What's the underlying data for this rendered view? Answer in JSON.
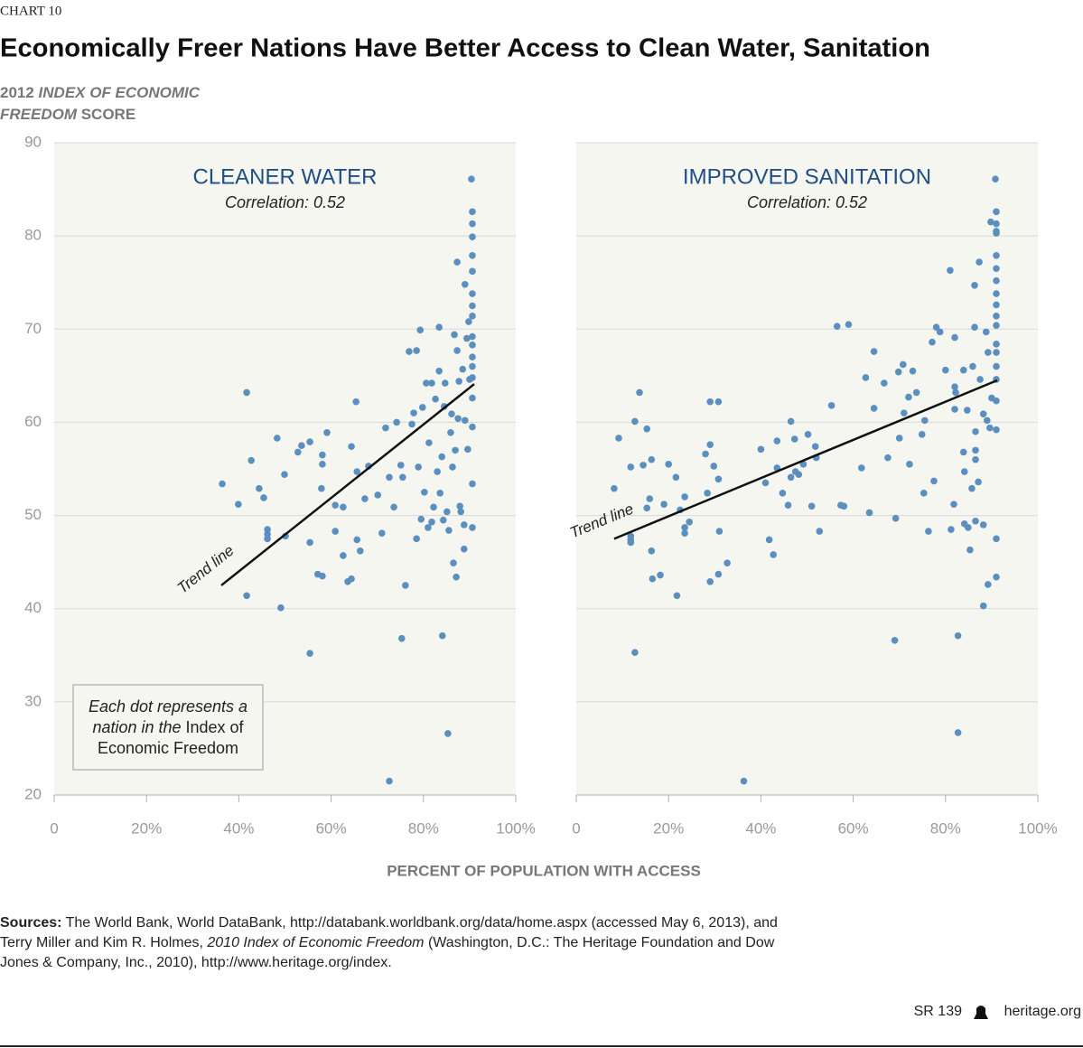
{
  "header": "CHART 10",
  "title": "Economically Freer Nations Have Better Access to Clean Water, Sanitation",
  "y_label": [
    [
      {
        "text": "2012 "
      },
      {
        "text": "INDEX OF ECONOMIC",
        "italic": true
      }
    ],
    [
      {
        "text": "FREEDOM",
        "italic": true
      },
      {
        "text": " SCORE"
      }
    ]
  ],
  "x_label": "PERCENT OF POPULATION WITH ACCESS",
  "sources": [
    [
      {
        "text": "Sources:",
        "bold": true
      },
      {
        "text": " The World Bank, World DataBank, http://databank.worldbank.org/data/home.aspx (accessed May 6, 2013), and"
      }
    ],
    [
      {
        "text": "Terry Miller and Kim R. Holmes, "
      },
      {
        "text": "2010 Index of Economic Freedom",
        "italic": true
      },
      {
        "text": " (Washington, D.C.: The Heritage Foundation and Dow"
      }
    ],
    [
      {
        "text": "Jones & Company, Inc., 2010), http://www.heritage.org/index."
      }
    ]
  ],
  "footer": {
    "report": "SR 139",
    "site": "heritage.org"
  },
  "chart_data": [
    {
      "type": "scatter",
      "title": "CLEANER WATER",
      "subtitle": "Correlation: 0.52",
      "color": "#5b8fbf",
      "title_color": "#1f4e85",
      "xlim": [
        0,
        100
      ],
      "ylim": [
        20,
        90
      ],
      "show_ytick_labels": true,
      "grid": true,
      "xticks": [
        0,
        {
          "value": 20,
          "label": "20%"
        },
        {
          "value": 40,
          "label": "40%"
        },
        {
          "value": 60,
          "label": "60%"
        },
        {
          "value": 80,
          "label": "80%"
        },
        {
          "value": 100,
          "label": "100%"
        }
      ],
      "yticks": [
        20,
        30,
        40,
        50,
        60,
        70,
        80,
        90
      ],
      "x": [
        36.4,
        39.9,
        41.7,
        41.7,
        42.7,
        44.4,
        45.4,
        46.2,
        46.2,
        46.2,
        48.3,
        49.1,
        49.9,
        50.1,
        52.8,
        53.6,
        55.4,
        55.4,
        55.4,
        57.1,
        58.1,
        57.9,
        58.1,
        58.1,
        59.1,
        60.9,
        60.9,
        62.6,
        62.6,
        63.6,
        64.4,
        64.4,
        65.4,
        65.6,
        65.6,
        66.3,
        67.3,
        68.1,
        70.1,
        71.0,
        71.8,
        72.6,
        72.6,
        73.6,
        74.2,
        75.1,
        75.3,
        75.5,
        76.1,
        76.9,
        77.5,
        77.9,
        78.5,
        78.5,
        78.9,
        79.3,
        79.5,
        79.8,
        80.2,
        80.6,
        81.0,
        81.2,
        81.8,
        81.8,
        82.2,
        82.6,
        83.0,
        83.4,
        83.4,
        83.6,
        84.0,
        84.1,
        84.3,
        84.5,
        84.7,
        85.1,
        85.3,
        85.5,
        85.9,
        86.1,
        86.3,
        86.5,
        86.7,
        86.9,
        87.1,
        87.3,
        87.3,
        87.5,
        87.7,
        87.9,
        88.1,
        88.5,
        88.8,
        88.8,
        89.0,
        89.0,
        89.4,
        89.6,
        89.8,
        90.0,
        90.4,
        90.6,
        90.6,
        90.6,
        90.6,
        90.6,
        90.6,
        90.6,
        90.6,
        90.6,
        90.6,
        90.6,
        90.6,
        90.6,
        90.6,
        90.6,
        90.6,
        90.6
      ],
      "values": [
        53.4,
        51.2,
        41.4,
        63.2,
        55.9,
        52.9,
        51.9,
        48.5,
        47.5,
        48.0,
        58.3,
        40.1,
        54.4,
        47.8,
        56.8,
        57.5,
        57.9,
        47.1,
        35.2,
        43.7,
        43.5,
        52.9,
        56.5,
        55.5,
        58.9,
        51.1,
        48.3,
        50.9,
        45.7,
        42.9,
        43.2,
        57.4,
        62.2,
        54.7,
        47.4,
        46.2,
        51.8,
        55.3,
        52.2,
        48.1,
        59.4,
        21.5,
        54.1,
        50.9,
        60.0,
        55.4,
        36.8,
        54.1,
        42.5,
        67.6,
        59.8,
        61.0,
        67.7,
        47.5,
        55.2,
        69.9,
        49.6,
        61.6,
        52.5,
        64.2,
        48.7,
        57.8,
        49.3,
        64.2,
        50.9,
        62.5,
        54.7,
        70.2,
        65.5,
        52.4,
        56.3,
        37.1,
        49.5,
        61.7,
        64.2,
        50.4,
        26.6,
        48.4,
        58.9,
        60.9,
        55.2,
        44.9,
        69.4,
        57.0,
        43.4,
        67.7,
        77.2,
        60.4,
        64.4,
        51.0,
        50.4,
        65.7,
        46.4,
        49.0,
        74.8,
        60.2,
        69.0,
        57.1,
        70.8,
        64.6,
        86.1,
        82.6,
        77.9,
        76.2,
        73.8,
        71.4,
        69.2,
        67.0,
        66.0,
        62.6,
        59.5,
        53.4,
        48.7,
        81.3,
        79.9,
        72.5,
        68.3,
        64.8
      ],
      "trend": {
        "label": "Trend line",
        "x": [
          36.2,
          91
        ],
        "y": [
          42.5,
          64.1
        ]
      },
      "note": [
        [
          {
            "text": "Each dot represents a",
            "italic": true
          }
        ],
        [
          {
            "text": "nation in the",
            "italic": true
          },
          {
            "text": " Index of"
          }
        ],
        [
          {
            "text": "Economic Freedom"
          }
        ]
      ]
    },
    {
      "type": "scatter",
      "title": "IMPROVED SANITATION",
      "subtitle": "Correlation: 0.52",
      "color": "#5b8fbf",
      "title_color": "#1f4e85",
      "xlim": [
        0,
        100
      ],
      "ylim": [
        20,
        90
      ],
      "show_ytick_labels": false,
      "grid": true,
      "xticks": [
        0,
        {
          "value": 20,
          "label": "20%"
        },
        {
          "value": 40,
          "label": "40%"
        },
        {
          "value": 60,
          "label": "60%"
        },
        {
          "value": 80,
          "label": "80%"
        },
        {
          "value": 100,
          "label": "100%"
        }
      ],
      "yticks": [
        20,
        30,
        40,
        50,
        60,
        70,
        80,
        90
      ],
      "x": [
        8.2,
        9.2,
        11.8,
        11.8,
        11.8,
        11.8,
        12.7,
        12.7,
        13.7,
        14.5,
        15.3,
        15.3,
        15.9,
        16.3,
        16.3,
        16.5,
        18.2,
        19.0,
        20.0,
        21.6,
        21.8,
        22.5,
        23.5,
        23.5,
        23.5,
        24.5,
        28.0,
        28.4,
        29.0,
        29.0,
        29.0,
        29.8,
        30.8,
        30.8,
        31.0,
        30.8,
        32.7,
        36.3,
        40.0,
        41.0,
        41.8,
        42.7,
        43.5,
        43.5,
        44.7,
        45.9,
        46.5,
        46.5,
        47.3,
        47.5,
        48.2,
        49.2,
        50.2,
        51.0,
        51.8,
        52.0,
        52.7,
        55.3,
        56.5,
        57.3,
        58.0,
        59.0,
        61.8,
        62.7,
        63.5,
        64.5,
        64.5,
        66.7,
        67.5,
        69.0,
        69.2,
        69.8,
        70.0,
        70.8,
        71.0,
        72.0,
        72.2,
        72.9,
        73.7,
        74.9,
        75.3,
        75.5,
        76.3,
        77.1,
        77.5,
        78.0,
        78.8,
        80.0,
        81.0,
        81.2,
        82.0,
        81.8,
        82.0,
        82.2,
        82.0,
        82.7,
        82.7,
        83.9,
        83.9,
        84.1,
        84.1,
        84.7,
        84.9,
        85.3,
        85.7,
        85.9,
        86.3,
        86.3,
        86.5,
        86.5,
        86.5,
        86.5,
        87.1,
        87.3,
        87.5,
        88.2,
        88.2,
        88.2,
        88.8,
        89.0,
        89.2,
        89.2,
        89.6,
        89.8,
        90.0,
        90.8,
        91.0,
        91.0,
        91.0,
        91.0,
        91.0,
        91.0,
        91.0,
        91.0,
        91.0,
        91.0,
        91.0,
        91.0,
        91.0,
        91.0,
        91.0,
        91.0,
        91.0,
        91.0,
        91.0
      ],
      "values": [
        52.9,
        58.3,
        55.2,
        47.8,
        47.1,
        47.4,
        60.1,
        35.3,
        63.2,
        55.4,
        59.3,
        50.8,
        51.8,
        56.0,
        46.2,
        43.2,
        43.6,
        51.2,
        55.5,
        54.1,
        41.4,
        50.6,
        52.0,
        48.7,
        48.1,
        49.3,
        56.6,
        52.4,
        57.6,
        62.2,
        42.9,
        55.3,
        62.2,
        53.9,
        48.3,
        43.7,
        44.9,
        21.5,
        57.1,
        53.5,
        47.4,
        45.8,
        58.0,
        55.1,
        52.4,
        51.1,
        60.1,
        54.1,
        58.2,
        54.7,
        54.4,
        55.5,
        58.7,
        51.0,
        57.4,
        56.2,
        48.3,
        61.8,
        70.3,
        51.1,
        51.0,
        70.5,
        55.1,
        64.8,
        50.3,
        61.5,
        67.6,
        64.2,
        56.2,
        36.6,
        49.7,
        65.4,
        58.3,
        66.2,
        61.0,
        62.7,
        55.5,
        65.5,
        63.2,
        58.7,
        52.4,
        60.2,
        48.3,
        68.6,
        53.7,
        70.2,
        69.7,
        65.6,
        76.3,
        48.5,
        69.1,
        51.2,
        63.8,
        63.2,
        61.4,
        37.1,
        26.7,
        65.6,
        56.8,
        54.7,
        49.1,
        61.3,
        48.7,
        46.3,
        52.9,
        66.0,
        74.7,
        70.2,
        59.0,
        57.0,
        56.0,
        49.4,
        53.6,
        77.2,
        64.6,
        40.3,
        60.9,
        49.0,
        69.7,
        60.2,
        42.6,
        67.5,
        59.4,
        81.5,
        62.6,
        86.1,
        82.6,
        81.3,
        80.5,
        77.9,
        76.5,
        75.2,
        73.8,
        72.6,
        71.4,
        70.4,
        68.4,
        67.5,
        66.0,
        64.6,
        62.3,
        59.2,
        47.5,
        43.4,
        80.3
      ],
      "trend": {
        "label": "Trend line",
        "x": [
          8.2,
          91.2
        ],
        "y": [
          47.5,
          64.5
        ]
      }
    }
  ]
}
